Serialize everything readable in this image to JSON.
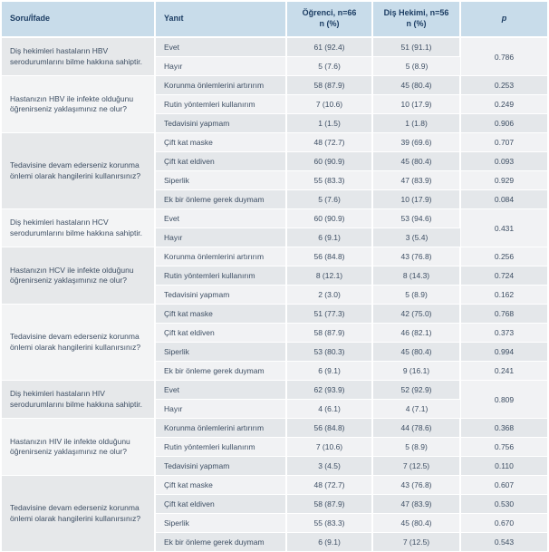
{
  "colors": {
    "header_bg": "#c8dcea",
    "header_text": "#1c3d63",
    "body_text": "#3d4e63",
    "stripe_dark": "#e4e7ea",
    "stripe_light": "#f1f2f4",
    "question_dark": "#e6e8ea",
    "question_light": "#f3f4f5",
    "separator": "#ffffff"
  },
  "table": {
    "header": {
      "col_question": "Soru/İfade",
      "col_answer": "Yanıt",
      "col_student_line1": "Öğrenci, n=66",
      "col_student_line2": "n (%)",
      "col_dentist_line1": "Diş Hekimi, n=56",
      "col_dentist_line2": "n (%)",
      "col_p": "p"
    },
    "groups": [
      {
        "question": "Diş hekimleri hastaların HBV serodurumlarını bilme hakkına sahiptir.",
        "p_shared": "0.786",
        "rows": [
          {
            "answer": "Evet",
            "student": "61 (92.4)",
            "dentist": "51 (91.1)"
          },
          {
            "answer": "Hayır",
            "student": "5 (7.6)",
            "dentist": "5 (8.9)"
          }
        ]
      },
      {
        "question": "Hastanızın HBV ile infekte olduğunu öğrenirseniz yaklaşımınız ne olur?",
        "rows": [
          {
            "answer": "Korunma önlemlerini artırırım",
            "student": "58 (87.9)",
            "dentist": "45 (80.4)",
            "p": "0.253"
          },
          {
            "answer": "Rutin yöntemleri kullanırım",
            "student": "7 (10.6)",
            "dentist": "10 (17.9)",
            "p": "0.249"
          },
          {
            "answer": "Tedavisini yapmam",
            "student": "1 (1.5)",
            "dentist": "1 (1.8)",
            "p": "0.906"
          }
        ]
      },
      {
        "question": "Tedavisine devam ederseniz korunma önlemi olarak hangilerini kullanırsınız?",
        "rows": [
          {
            "answer": "Çift kat maske",
            "student": "48 (72.7)",
            "dentist": "39 (69.6)",
            "p": "0.707"
          },
          {
            "answer": "Çift kat eldiven",
            "student": "60 (90.9)",
            "dentist": "45 (80.4)",
            "p": "0.093"
          },
          {
            "answer": "Siperlik",
            "student": "55 (83.3)",
            "dentist": "47 (83.9)",
            "p": "0.929"
          },
          {
            "answer": "Ek bir önleme gerek duymam",
            "student": "5 (7.6)",
            "dentist": "10 (17.9)",
            "p": "0.084"
          }
        ]
      },
      {
        "question": "Diş hekimleri hastaların HCV serodurumlarını bilme hakkına sahiptir.",
        "p_shared": "0.431",
        "rows": [
          {
            "answer": "Evet",
            "student": "60 (90.9)",
            "dentist": "53 (94.6)"
          },
          {
            "answer": "Hayır",
            "student": "6 (9.1)",
            "dentist": "3 (5.4)"
          }
        ]
      },
      {
        "question": "Hastanızın HCV ile infekte olduğunu öğrenirseniz yaklaşımınız ne olur?",
        "rows": [
          {
            "answer": "Korunma önlemlerini artırırım",
            "student": "56 (84.8)",
            "dentist": "43 (76.8)",
            "p": "0.256"
          },
          {
            "answer": "Rutin yöntemleri kullanırım",
            "student": "8 (12.1)",
            "dentist": "8 (14.3)",
            "p": "0.724"
          },
          {
            "answer": "Tedavisini yapmam",
            "student": "2 (3.0)",
            "dentist": "5 (8.9)",
            "p": "0.162"
          }
        ]
      },
      {
        "question": "Tedavisine devam ederseniz korunma önlemi olarak hangilerini kullanırsınız?",
        "rows": [
          {
            "answer": "Çift kat maske",
            "student": "51 (77.3)",
            "dentist": "42 (75.0)",
            "p": "0.768"
          },
          {
            "answer": "Çift kat eldiven",
            "student": "58 (87.9)",
            "dentist": "46 (82.1)",
            "p": "0.373"
          },
          {
            "answer": "Siperlik",
            "student": "53 (80.3)",
            "dentist": "45 (80.4)",
            "p": "0.994"
          },
          {
            "answer": "Ek bir önleme gerek duymam",
            "student": "6 (9.1)",
            "dentist": "9 (16.1)",
            "p": "0.241"
          }
        ]
      },
      {
        "question": "Diş hekimleri hastaların HIV serodurumlarını bilme hakkına sahiptir.",
        "p_shared": "0.809",
        "rows": [
          {
            "answer": "Evet",
            "student": "62 (93.9)",
            "dentist": "52 (92.9)"
          },
          {
            "answer": "Hayır",
            "student": "4 (6.1)",
            "dentist": "4 (7.1)"
          }
        ]
      },
      {
        "question": "Hastanızın HIV ile infekte olduğunu öğrenirseniz yaklaşımınız ne olur?",
        "rows": [
          {
            "answer": "Korunma önlemlerini artırırım",
            "student": "56 (84.8)",
            "dentist": "44 (78.6)",
            "p": "0.368"
          },
          {
            "answer": "Rutin yöntemleri kullanırım",
            "student": "7 (10.6)",
            "dentist": "5 (8.9)",
            "p": "0.756"
          },
          {
            "answer": "Tedavisini yapmam",
            "student": "3 (4.5)",
            "dentist": "7 (12.5)",
            "p": "0.110"
          }
        ]
      },
      {
        "question": "Tedavisine devam ederseniz korunma önlemi olarak hangilerini kullanırsınız?",
        "rows": [
          {
            "answer": "Çift kat maske",
            "student": "48 (72.7)",
            "dentist": "43 (76.8)",
            "p": "0.607"
          },
          {
            "answer": "Çift kat eldiven",
            "student": "58 (87.9)",
            "dentist": "47 (83.9)",
            "p": "0.530"
          },
          {
            "answer": "Siperlik",
            "student": "55 (83.3)",
            "dentist": "45 (80.4)",
            "p": "0.670"
          },
          {
            "answer": "Ek bir önleme gerek duymam",
            "student": "6 (9.1)",
            "dentist": "7 (12.5)",
            "p": "0.543"
          }
        ]
      }
    ]
  }
}
